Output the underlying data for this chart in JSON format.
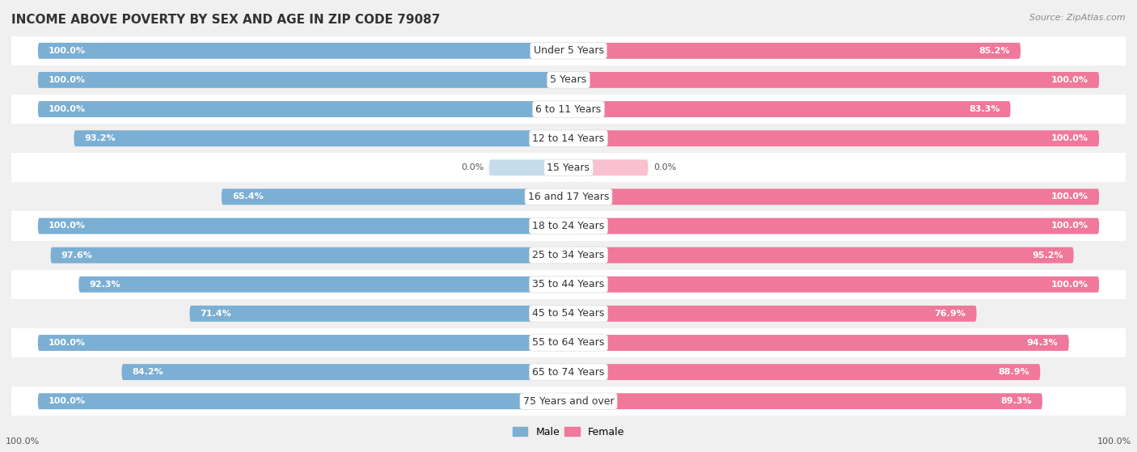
{
  "title": "INCOME ABOVE POVERTY BY SEX AND AGE IN ZIP CODE 79087",
  "source": "Source: ZipAtlas.com",
  "categories": [
    "Under 5 Years",
    "5 Years",
    "6 to 11 Years",
    "12 to 14 Years",
    "15 Years",
    "16 and 17 Years",
    "18 to 24 Years",
    "25 to 34 Years",
    "35 to 44 Years",
    "45 to 54 Years",
    "55 to 64 Years",
    "65 to 74 Years",
    "75 Years and over"
  ],
  "male_values": [
    100.0,
    100.0,
    100.0,
    93.2,
    0.0,
    65.4,
    100.0,
    97.6,
    92.3,
    71.4,
    100.0,
    84.2,
    100.0
  ],
  "female_values": [
    85.2,
    100.0,
    83.3,
    100.0,
    0.0,
    100.0,
    100.0,
    95.2,
    100.0,
    76.9,
    94.3,
    88.9,
    89.3
  ],
  "male_color": "#7bafd4",
  "female_color": "#f0789a",
  "male_color_light": "#c5dced",
  "female_color_light": "#f9c0cf",
  "male_label": "Male",
  "female_label": "Female",
  "background_color": "#f0f0f0",
  "row_color_even": "#ffffff",
  "row_color_odd": "#f0f0f0",
  "title_fontsize": 11,
  "label_fontsize": 8,
  "cat_fontsize": 9,
  "footer_value": "100.0%"
}
